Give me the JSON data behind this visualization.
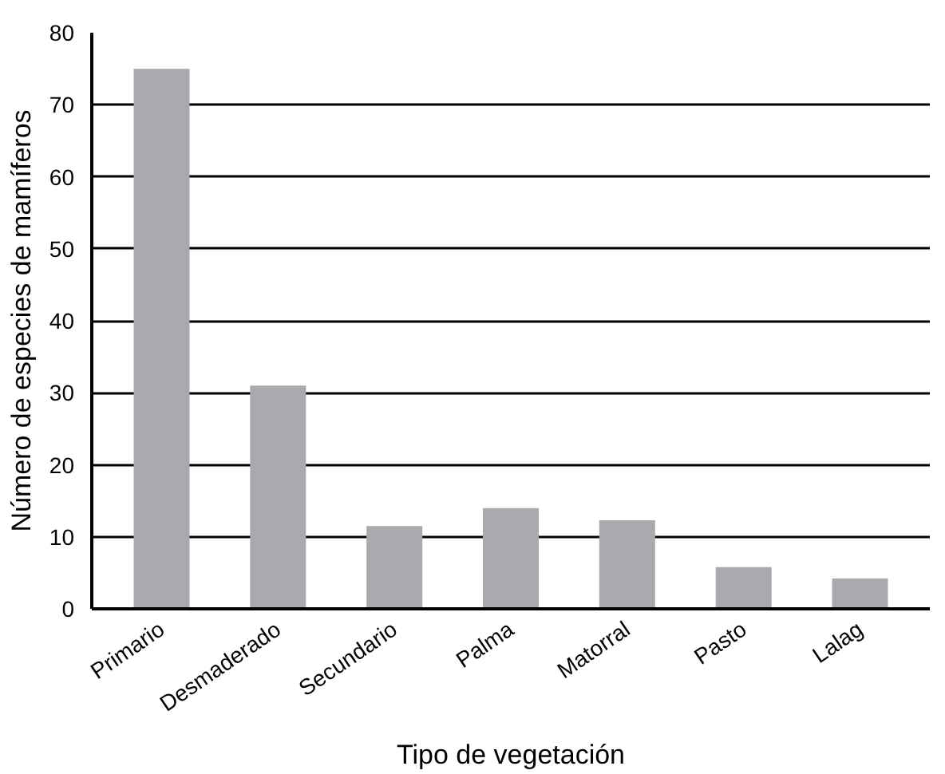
{
  "chart_data": {
    "type": "bar",
    "xlabel": "Tipo de vegetación",
    "ylabel": "Número de especies de mamíferos",
    "categories": [
      "Primario",
      "Desmaderado",
      "Secundario",
      "Palma",
      "Matorral",
      "Pasto",
      "Lalag"
    ],
    "values": [
      75,
      31,
      11.5,
      14,
      12.3,
      5.8,
      4.2
    ],
    "color": "#a9aaae",
    "ylim": [
      0,
      80
    ],
    "yticks": [
      0,
      10,
      20,
      30,
      40,
      50,
      60,
      70,
      80
    ],
    "grid": "y"
  }
}
